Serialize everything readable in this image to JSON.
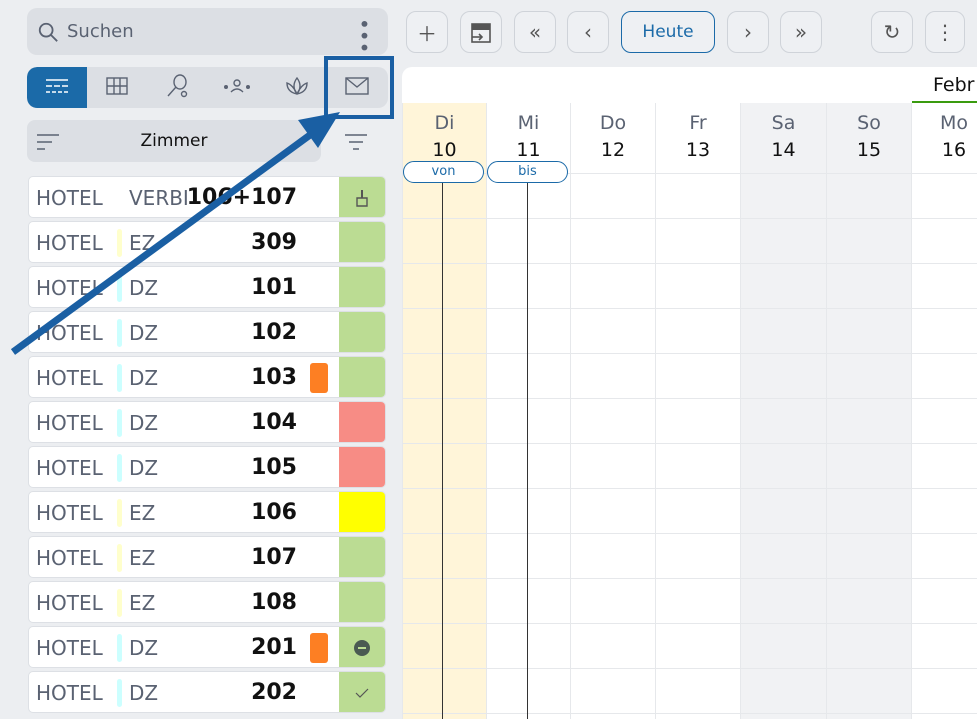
{
  "search": {
    "placeholder": "Suchen"
  },
  "view_tabs": [
    {
      "icon": "list-icon",
      "active": true
    },
    {
      "icon": "grid-icon"
    },
    {
      "icon": "racket-icon"
    },
    {
      "icon": "group-icon"
    },
    {
      "icon": "lotus-icon"
    },
    {
      "icon": "mail-icon",
      "highlighted": true
    }
  ],
  "sort": {
    "label": "Zimmer"
  },
  "rooms": [
    {
      "prop": "HOTEL",
      "type": "VERBI",
      "num": "106+107",
      "type_color": "",
      "flag": false,
      "status_color": "#bbdc93",
      "status_icon": "broom"
    },
    {
      "prop": "HOTEL",
      "type": "EZ",
      "num": "309",
      "type_color": "#ffffcc",
      "flag": false,
      "status_color": "#bbdc93",
      "status_icon": ""
    },
    {
      "prop": "HOTEL",
      "type": "DZ",
      "num": "101",
      "type_color": "#ccffff",
      "flag": false,
      "status_color": "#bbdc93",
      "status_icon": ""
    },
    {
      "prop": "HOTEL",
      "type": "DZ",
      "num": "102",
      "type_color": "#ccffff",
      "flag": false,
      "status_color": "#bbdc93",
      "status_icon": ""
    },
    {
      "prop": "HOTEL",
      "type": "DZ",
      "num": "103",
      "type_color": "#ccffff",
      "flag": true,
      "status_color": "#bbdc93",
      "status_icon": ""
    },
    {
      "prop": "HOTEL",
      "type": "DZ",
      "num": "104",
      "type_color": "#ccffff",
      "flag": false,
      "status_color": "#f78c85",
      "status_icon": ""
    },
    {
      "prop": "HOTEL",
      "type": "DZ",
      "num": "105",
      "type_color": "#ccffff",
      "flag": false,
      "status_color": "#f78c85",
      "status_icon": ""
    },
    {
      "prop": "HOTEL",
      "type": "EZ",
      "num": "106",
      "type_color": "#ffffcc",
      "flag": false,
      "status_color": "#ffff00",
      "status_icon": ""
    },
    {
      "prop": "HOTEL",
      "type": "EZ",
      "num": "107",
      "type_color": "#ffffcc",
      "flag": false,
      "status_color": "#bbdc93",
      "status_icon": ""
    },
    {
      "prop": "HOTEL",
      "type": "EZ",
      "num": "108",
      "type_color": "#ffffcc",
      "flag": false,
      "status_color": "#bbdc93",
      "status_icon": ""
    },
    {
      "prop": "HOTEL",
      "type": "DZ",
      "num": "201",
      "type_color": "#ccffff",
      "flag": true,
      "status_color": "#bbdc93",
      "status_icon": "minus-circle"
    },
    {
      "prop": "HOTEL",
      "type": "DZ",
      "num": "202",
      "type_color": "#ccffff",
      "flag": false,
      "status_color": "#bbdc93",
      "status_icon": "check"
    }
  ],
  "toolbar": {
    "today": "Heute"
  },
  "calendar": {
    "month": "Febr",
    "days": [
      {
        "name": "Di",
        "num": "10",
        "bg": "#fff5d9"
      },
      {
        "name": "Mi",
        "num": "11",
        "bg": "#ffffff"
      },
      {
        "name": "Do",
        "num": "12",
        "bg": "#ffffff"
      },
      {
        "name": "Fr",
        "num": "13",
        "bg": "#ffffff"
      },
      {
        "name": "Sa",
        "num": "14",
        "bg": "#f1f2f4"
      },
      {
        "name": "So",
        "num": "15",
        "bg": "#f1f2f4"
      },
      {
        "name": "Mo",
        "num": "16",
        "bg": "#ffffff"
      }
    ],
    "from_label": "von",
    "to_label": "bis"
  }
}
